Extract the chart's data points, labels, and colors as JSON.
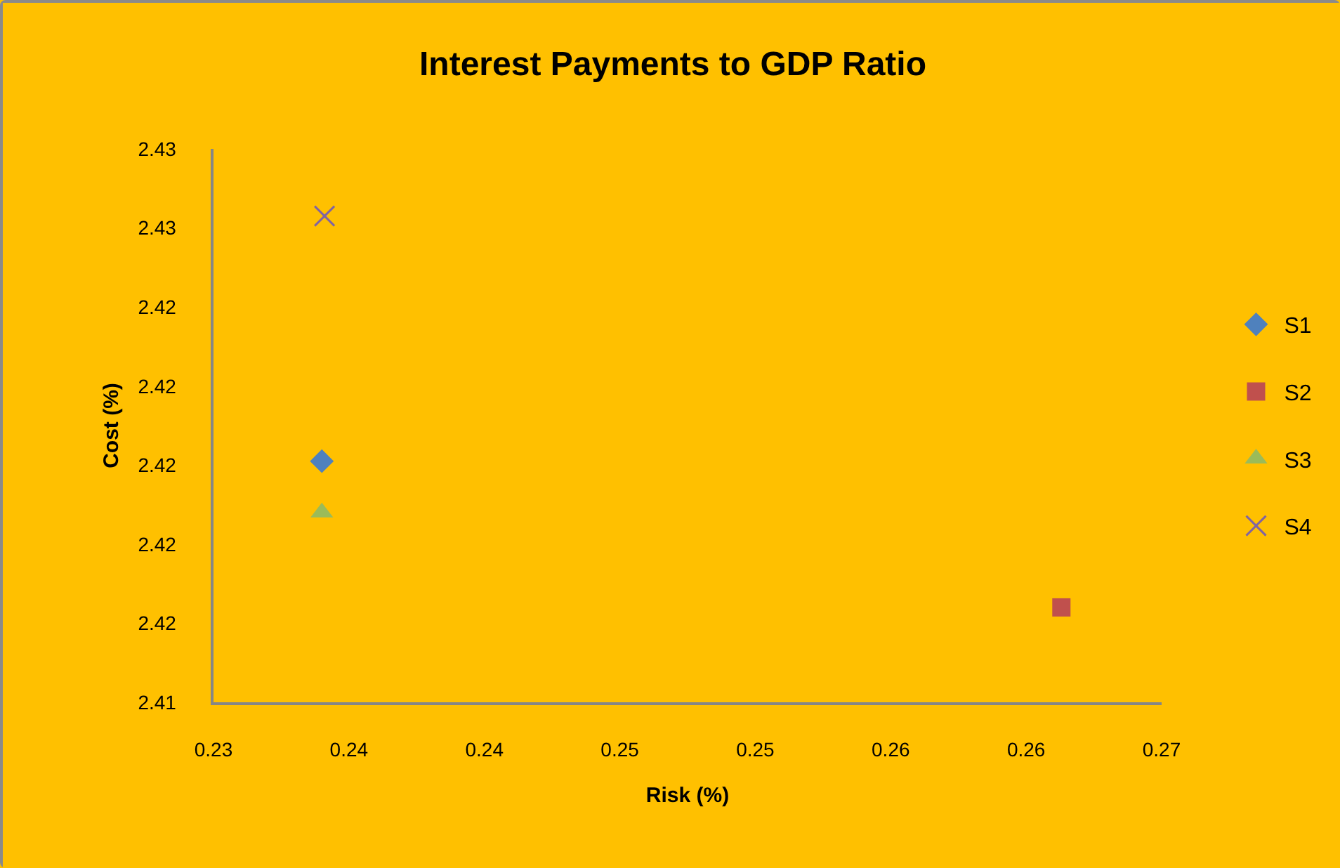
{
  "chart_data": {
    "type": "scatter",
    "title": "Interest Payments to GDP Ratio",
    "xlabel": "Risk (%)",
    "ylabel": "Cost (%)",
    "series": [
      {
        "name": "S1",
        "color": "#4f81bd",
        "marker": "diamond",
        "x": [
          0.234
        ],
        "values": [
          2.4201
        ]
      },
      {
        "name": "S2",
        "color": "#c0504d",
        "marker": "square",
        "x": [
          0.2613
        ],
        "values": [
          2.4164
        ]
      },
      {
        "name": "S3",
        "color": "#9bbb59",
        "marker": "triangle",
        "x": [
          0.234
        ],
        "values": [
          2.4188
        ]
      },
      {
        "name": "S4",
        "color": "#8064a2",
        "marker": "cross",
        "x": [
          0.2341
        ],
        "values": [
          2.4263
        ]
      }
    ],
    "xlim": [
      0.23,
      0.265
    ],
    "xticks": [
      {
        "value": 0.23,
        "label": "0.23"
      },
      {
        "value": 0.235,
        "label": "0.24"
      },
      {
        "value": 0.24,
        "label": "0.24"
      },
      {
        "value": 0.245,
        "label": "0.25"
      },
      {
        "value": 0.25,
        "label": "0.25"
      },
      {
        "value": 0.255,
        "label": "0.26"
      },
      {
        "value": 0.26,
        "label": "0.26"
      },
      {
        "value": 0.265,
        "label": "0.27"
      }
    ],
    "ylim": [
      2.414,
      2.428
    ],
    "yticks": [
      {
        "value": 2.414,
        "label": "2.41"
      },
      {
        "value": 2.416,
        "label": "2.42"
      },
      {
        "value": 2.418,
        "label": "2.42"
      },
      {
        "value": 2.42,
        "label": "2.42"
      },
      {
        "value": 2.422,
        "label": "2.42"
      },
      {
        "value": 2.424,
        "label": "2.42"
      },
      {
        "value": 2.426,
        "label": "2.43"
      },
      {
        "value": 2.428,
        "label": "2.43"
      }
    ],
    "grid": false,
    "legend": "right"
  }
}
